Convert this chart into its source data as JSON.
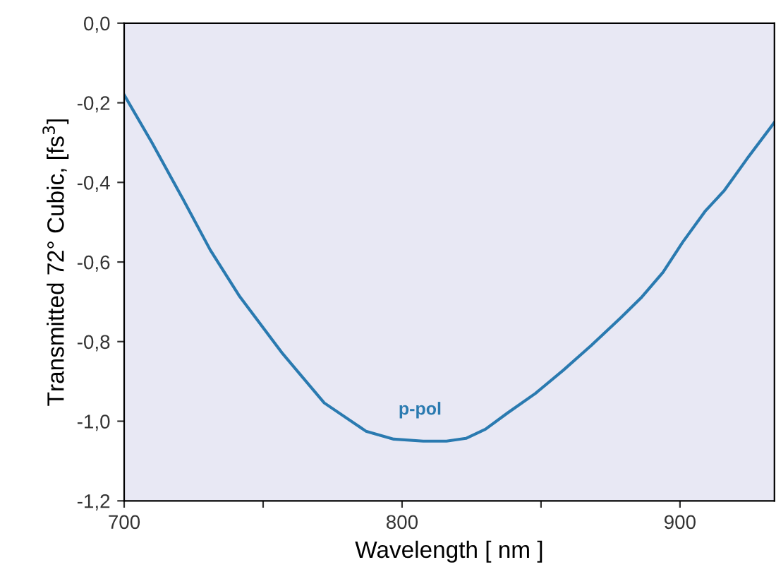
{
  "chart_data": {
    "type": "line",
    "xlabel": "Wavelength [ nm ]",
    "ylabel": "Transmitted 72° Cubic, [fs$^{3}$]",
    "x": [
      700,
      710,
      721,
      731,
      741.6,
      757,
      772,
      787,
      797,
      807.6,
      816,
      823,
      830,
      838,
      848,
      858,
      868,
      878.7,
      886,
      893.9,
      901,
      909,
      916,
      924,
      934
    ],
    "series": [
      {
        "color": "#2a7ab0",
        "values": [
          -0.18,
          -0.3,
          -0.44,
          -0.57,
          -0.687,
          -0.83,
          -0.954,
          -1.025,
          -1.045,
          -1.05,
          -1.05,
          -1.043,
          -1.02,
          -0.979,
          -0.93,
          -0.872,
          -0.81,
          -0.74,
          -0.69,
          -0.626,
          -0.55,
          -0.473,
          -0.42,
          -0.342,
          -0.249
        ]
      }
    ],
    "annotations": [
      "p-pol"
    ],
    "xlim": [
      700,
      934
    ],
    "ylim": [
      -1.2,
      0
    ],
    "xticks": [
      700,
      {
        "value": 750,
        "label": null
      },
      800,
      {
        "value": 850,
        "label": null
      },
      900
    ],
    "yticks": [
      {
        "value": -1.2,
        "label": "-1,2"
      },
      {
        "value": -1.0,
        "label": "-1,0"
      },
      {
        "value": -0.8,
        "label": "-0,8"
      },
      {
        "value": -0.6,
        "label": "-0,6"
      },
      {
        "value": -0.4,
        "label": "-0,4"
      },
      {
        "value": -0.2,
        "label": "-0,2"
      },
      {
        "value": 0,
        "label": "0,0"
      }
    ],
    "grid": false,
    "legend": false
  }
}
